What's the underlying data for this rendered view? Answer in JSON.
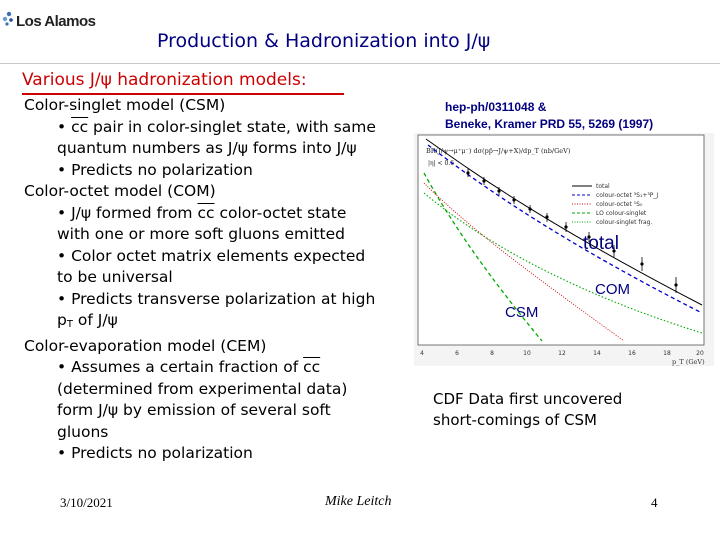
{
  "header": {
    "logo_text": "Los Alamos",
    "title": "Production & Hadronization into J/ψ"
  },
  "heading": "Various J/ψ  hadronization models:",
  "body": {
    "line_1": "Color-singlet model (CSM)",
    "line_2_pre": "• ",
    "line_2_cc": "cc",
    "line_2_post": " pair in color-singlet state, with same",
    "line_3": "quantum numbers as J/ψ forms into J/ψ",
    "line_4": "• Predicts no polarization",
    "line_5": "Color-octet model (COM)",
    "line_6_pre": "• J/ψ formed from ",
    "line_6_cc": "cc",
    "line_6_post": " color-octet state",
    "line_7": "with one or more soft gluons emitted",
    "line_8": "• Color octet matrix elements expected",
    "line_9": "to be universal",
    "line_10": "• Predicts transverse polarization at high",
    "line_11_p": "p",
    "line_11_sub": "T",
    "line_11_post": " of J/ψ",
    "line_12": "Color-evaporation model (CEM)",
    "line_13_pre": "• Assumes a certain fraction of ",
    "line_13_cc": "cc",
    "line_14": "(determined from experimental data)",
    "line_15": "form J/ψ by emission of several soft",
    "line_16": "gluons",
    "line_17": "• Predicts no polarization"
  },
  "citation": {
    "line_1": "hep-ph/0311048 &",
    "line_2": "Beneke, Kramer PRD 55, 5269 (1997)"
  },
  "plot": {
    "ylabel": "BR(J/ψ→μ⁺μ⁻) dσ(pp̄→J/ψ+X)/dp_T (nb/GeV)",
    "cut": "|η| < 0.6",
    "xlabel": "p_T (GeV)",
    "legend": [
      "total",
      "colour-octet ³S₁+³P_J",
      "colour-octet ¹S₀",
      "LO colour-singlet",
      "colour-singlet frag."
    ],
    "x_ticks": [
      "4",
      "6",
      "8",
      "10",
      "12",
      "14",
      "16",
      "18",
      "20"
    ],
    "labels": {
      "total": "total",
      "com": "COM",
      "csm": "CSM"
    },
    "colors": {
      "total": "#000000",
      "com": "#0000cc",
      "csm": "#00aa00",
      "frag": "#00aa00"
    }
  },
  "cdf": {
    "line_1": "CDF Data first uncovered",
    "line_2": "short-comings of CSM"
  },
  "footer": {
    "date": "3/10/2021",
    "author": "Mike Leitch",
    "page": "4"
  }
}
